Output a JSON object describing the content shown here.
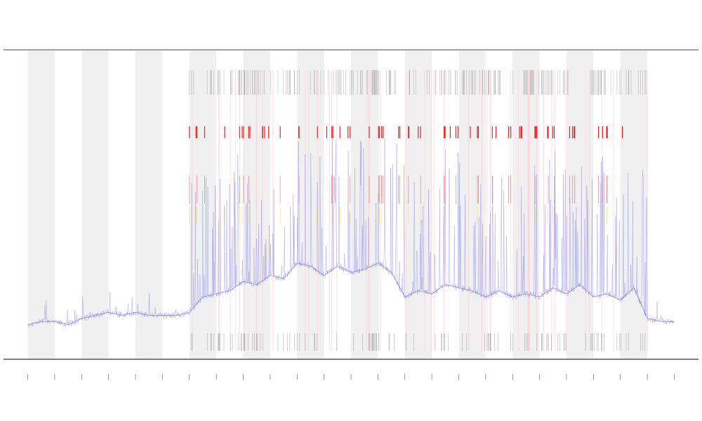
{
  "chart_data": {
    "type": "line",
    "title": "",
    "xlabel": "",
    "ylabel": "",
    "legend_label": "",
    "grid": false,
    "colors": {
      "series": "#8c8cf0",
      "marker_red": "#ee2222",
      "marker_yellow": "#f0e040",
      "rug": "#444444",
      "band": "#f0f0f0",
      "axis": "#555555"
    },
    "x_ticks": [
      0,
      1,
      2,
      3,
      4,
      5,
      6,
      7,
      8,
      9,
      10,
      11,
      12,
      13,
      14,
      15,
      16,
      17,
      18,
      19,
      20,
      21,
      22,
      23,
      24
    ],
    "x_range": [
      -0.9,
      24.9
    ],
    "y_range": [
      0,
      1
    ],
    "shaded_bands": [
      [
        0,
        1
      ],
      [
        2,
        3
      ],
      [
        4,
        5
      ],
      [
        6,
        7
      ],
      [
        8,
        9
      ],
      [
        10,
        11
      ],
      [
        12,
        13
      ],
      [
        14,
        15
      ],
      [
        16,
        17
      ],
      [
        18,
        19
      ],
      [
        20,
        21
      ],
      [
        22,
        23
      ]
    ],
    "series": [
      {
        "x": [
          0.0,
          0.5,
          1.0,
          1.5,
          2.0,
          2.5,
          3.0,
          3.5,
          4.0,
          4.5,
          5.0,
          5.5,
          6.0,
          6.5,
          7.0,
          7.5,
          8.0,
          8.5,
          9.0,
          9.5,
          10.0,
          10.5,
          11.0,
          11.5,
          12.0,
          12.5,
          13.0,
          13.5,
          14.0,
          14.5,
          15.0,
          15.5,
          16.0,
          16.5,
          17.0,
          17.5,
          18.0,
          18.5,
          19.0,
          19.5,
          20.0,
          20.5,
          21.0,
          21.5,
          22.0,
          22.5,
          23.0,
          23.5,
          24.0
        ],
        "y": [
          0.11,
          0.12,
          0.12,
          0.11,
          0.13,
          0.14,
          0.15,
          0.14,
          0.15,
          0.14,
          0.14,
          0.14,
          0.15,
          0.2,
          0.21,
          0.22,
          0.25,
          0.24,
          0.27,
          0.26,
          0.31,
          0.3,
          0.27,
          0.3,
          0.28,
          0.29,
          0.31,
          0.28,
          0.2,
          0.22,
          0.21,
          0.24,
          0.23,
          0.22,
          0.2,
          0.22,
          0.2,
          0.21,
          0.2,
          0.23,
          0.21,
          0.24,
          0.2,
          0.21,
          0.19,
          0.23,
          0.13,
          0.12,
          0.12
        ]
      }
    ],
    "marker_start": 6,
    "marker_end": 23
  }
}
